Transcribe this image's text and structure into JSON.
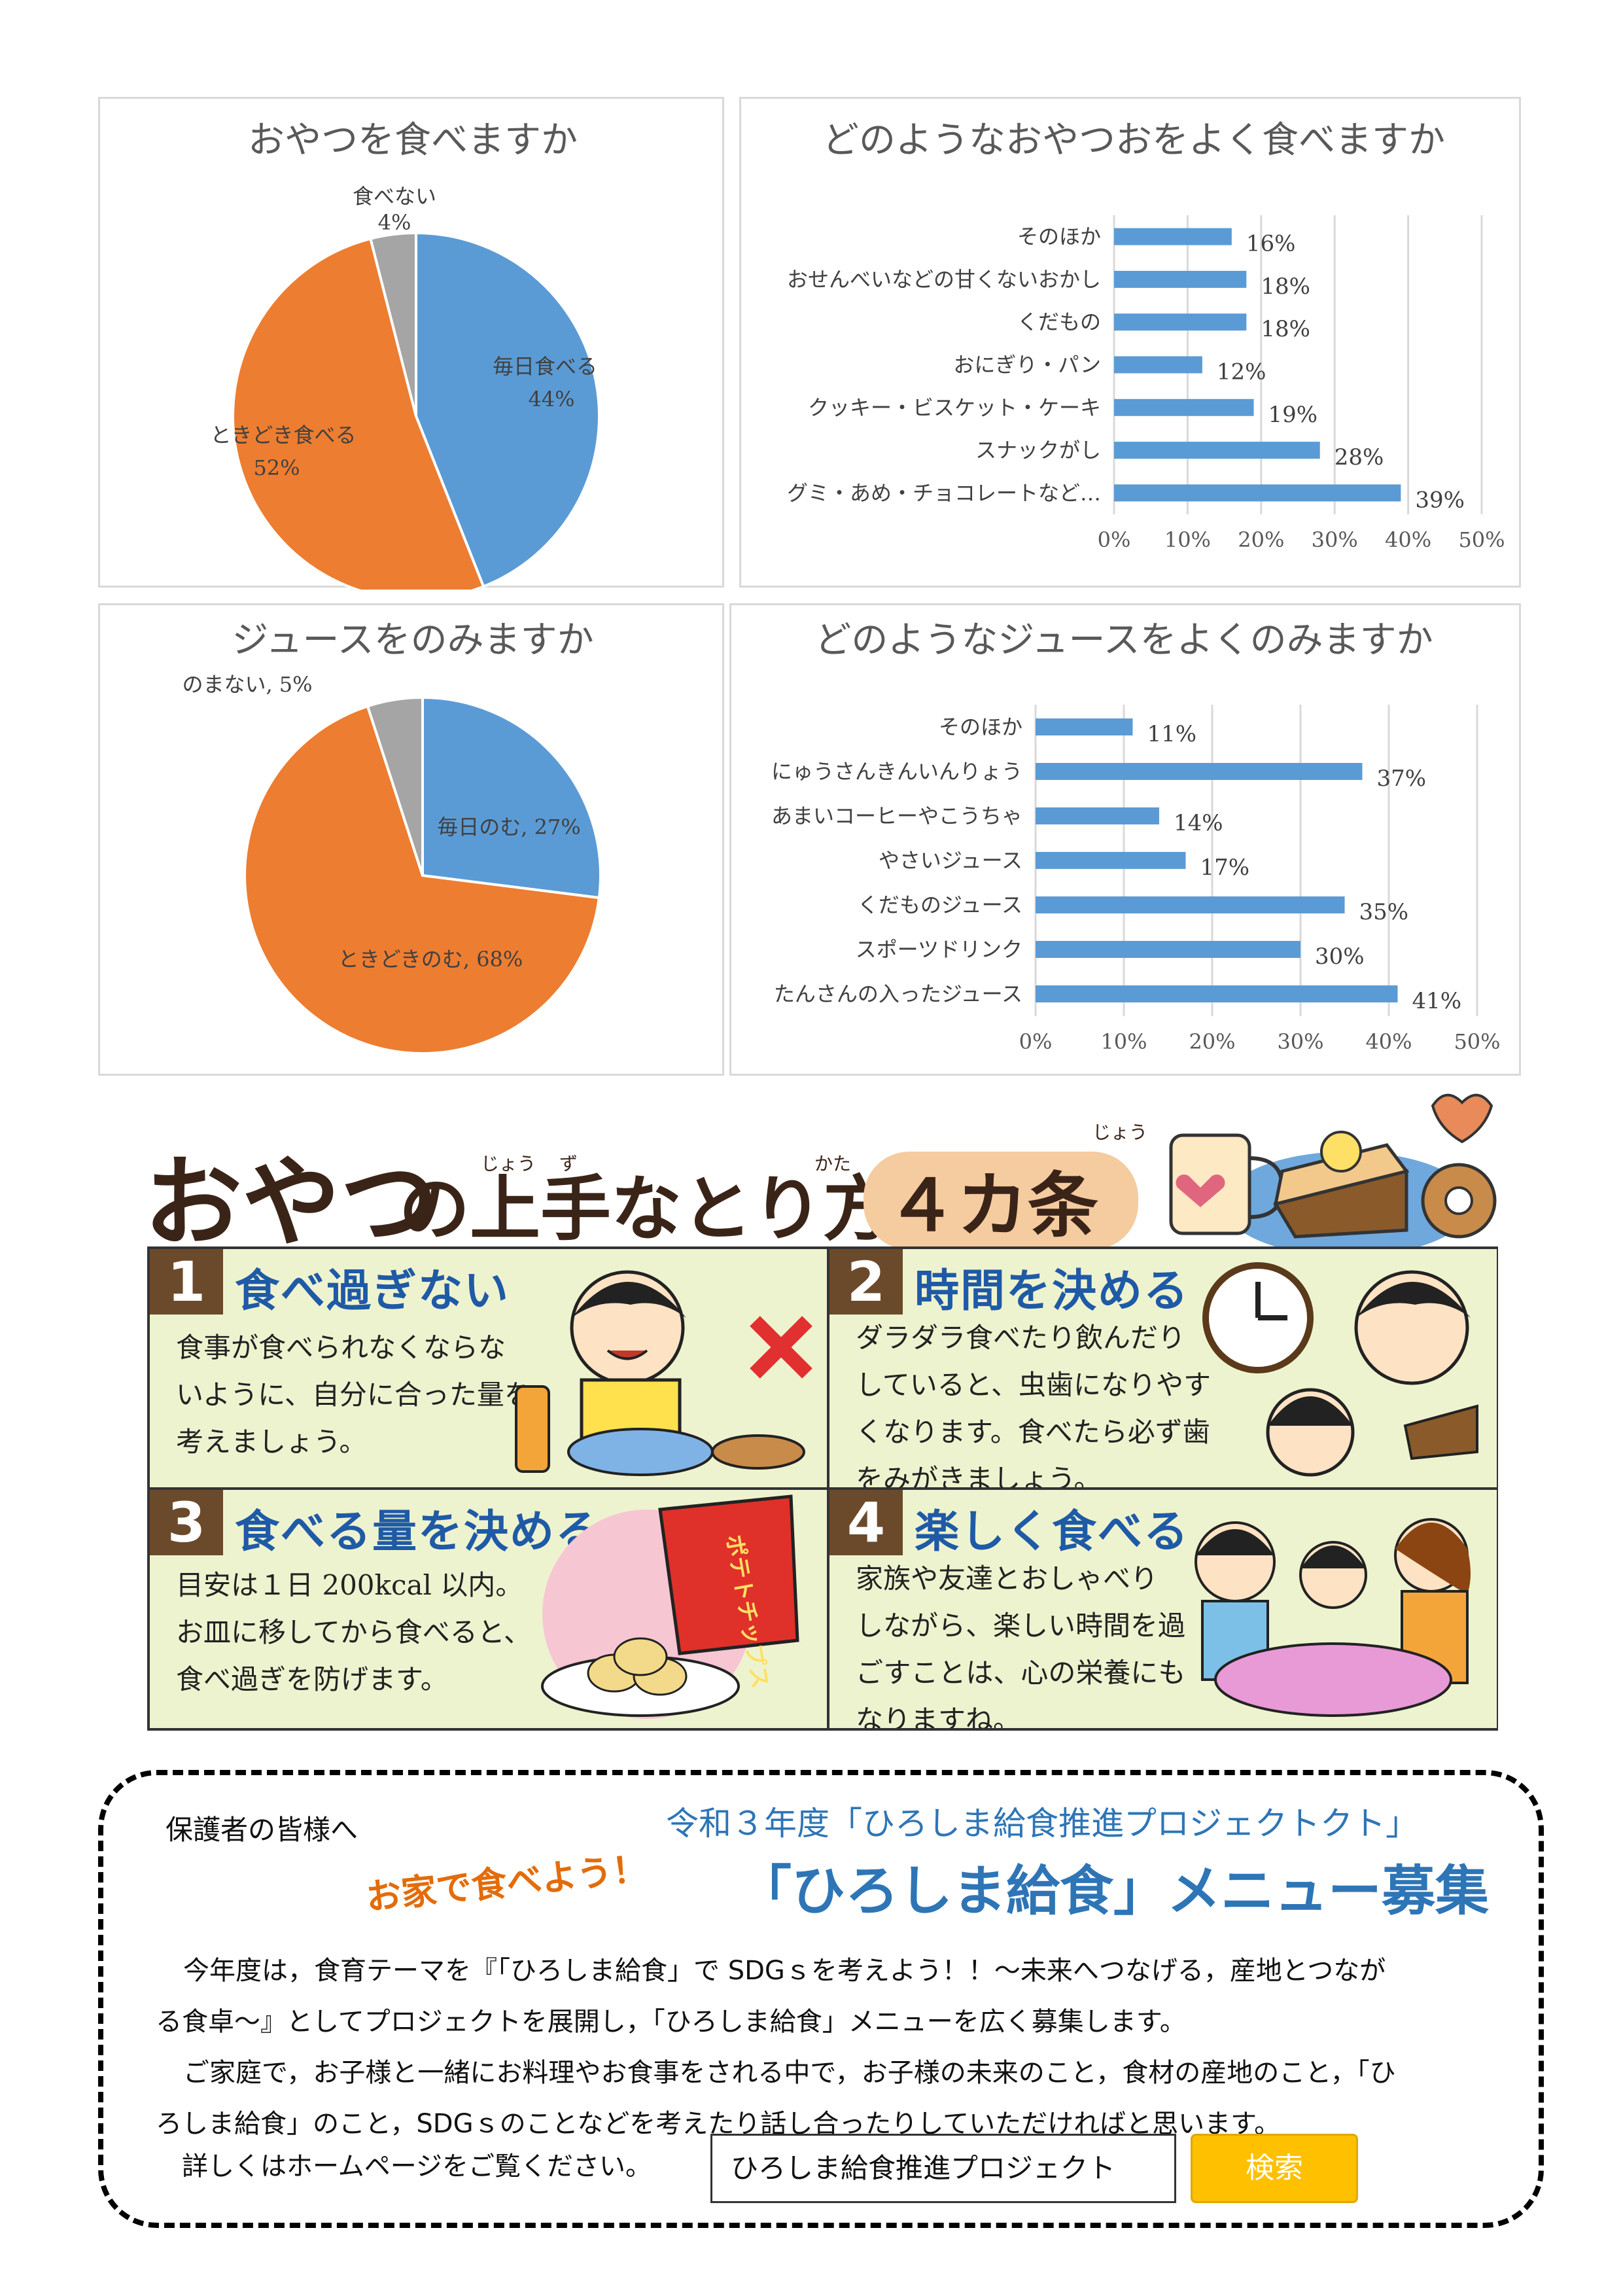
{
  "colors": {
    "blue": "#5b9bd5",
    "orange": "#ed7d31",
    "gray": "#a5a5a5"
  },
  "chart_data": [
    {
      "type": "pie",
      "title": "おやつを食べますか",
      "slices": [
        {
          "label": "毎日食べる",
          "value": 44,
          "value_text": "44%",
          "color": "#5b9bd5"
        },
        {
          "label": "ときどき食べる",
          "value": 52,
          "value_text": "52%",
          "color": "#ed7d31"
        },
        {
          "label": "食べない",
          "value": 4,
          "value_text": "4%",
          "color": "#a5a5a5"
        }
      ]
    },
    {
      "type": "bar",
      "orientation": "horizontal",
      "title": "どのようなおやつおをよく食べますか",
      "categories": [
        "そのほか",
        "おせんべいなどの甘くないおかし",
        "くだもの",
        "おにぎり・パン",
        "クッキー・ビスケット・ケーキ",
        "スナックがし",
        "グミ・あめ・チョコレートなど…"
      ],
      "values": [
        16,
        18,
        18,
        12,
        19,
        28,
        39
      ],
      "value_labels": [
        "16%",
        "18%",
        "18%",
        "12%",
        "19%",
        "28%",
        "39%"
      ],
      "xlim": [
        0,
        50
      ],
      "ticks": [
        "0%",
        "10%",
        "20%",
        "30%",
        "40%",
        "50%"
      ],
      "grid": true
    },
    {
      "type": "pie",
      "title": "ジュースをのみますか",
      "slices": [
        {
          "label": "毎日のむ, 27%",
          "value": 27,
          "color": "#5b9bd5"
        },
        {
          "label": "ときどきのむ, 68%",
          "value": 68,
          "color": "#ed7d31"
        },
        {
          "label": "のまない, 5%",
          "value": 5,
          "color": "#a5a5a5"
        }
      ]
    },
    {
      "type": "bar",
      "orientation": "horizontal",
      "title": "どのようなジュースをよくのみますか",
      "categories": [
        "そのほか",
        "にゅうさんきんいんりょう",
        "あまいコーヒーやこうちゃ",
        "やさいジュース",
        "くだものジュース",
        "スポーツドリンク",
        "たんさんの入ったジュース"
      ],
      "values": [
        11,
        37,
        14,
        17,
        35,
        30,
        41
      ],
      "value_labels": [
        "11%",
        "37%",
        "14%",
        "17%",
        "35%",
        "30%",
        "41%"
      ],
      "xlim": [
        0,
        50
      ],
      "ticks": [
        "0%",
        "10%",
        "20%",
        "30%",
        "40%",
        "50%"
      ],
      "grid": true
    }
  ],
  "banner": {
    "part1": "おやつ",
    "part2": "の上手なとり方",
    "part3": "４カ条",
    "ruby_jou": "じょう",
    "ruby_zu": "ず",
    "ruby_kata": "かた",
    "ruby_jou2": "じょう"
  },
  "tips": [
    {
      "num": "1",
      "title": "食べ過ぎない",
      "lines": [
        "食事が食べられなくならな",
        "いように、自分に合った量を",
        "考えましょう。"
      ]
    },
    {
      "num": "2",
      "title": "時間を決める",
      "lines": [
        "ダラダラ食べたり飲んだり",
        "していると、虫歯になりやす",
        "くなります。食べたら必ず歯",
        "をみがきましょう。"
      ]
    },
    {
      "num": "3",
      "title": "食べる量を決める",
      "lines": [
        "目安は１日 200kcal 以内。",
        "お皿に移してから食べると、",
        "食べ過ぎを防げます。"
      ],
      "bag_text": "ポテトチップス"
    },
    {
      "num": "4",
      "title": "楽しく食べる",
      "lines": [
        "家族や友達とおしゃべり",
        "しながら、楽しい時間を過",
        "ごすことは、心の栄養にも",
        "なりますね。"
      ]
    }
  ],
  "notice": {
    "to": "保護者の皆様へ",
    "project": "令和３年度「ひろしま給食推進プロジェクトクト」",
    "slogan": "お家で食べよう！",
    "heading": "「ひろしま給食」メニュー募集",
    "para1": "今年度は，食育テーマを『「ひろしま給食」で SDGｓを考えよう！！～未来へつなげる，産地とつなが",
    "para2": "る食卓～』としてプロジェクトを展開し，「ひろしま給食」メニューを広く募集します。",
    "para3": "ご家庭で，お子様と一緒にお料理やお食事をされる中で，お子様の未来のこと，食材の産地のこと，「ひ",
    "para4": "ろしま給食」のこと，SDGｓのことなどを考えたり話し合ったりしていただければと思います。",
    "more": "詳しくはホームページをご覧ください。",
    "search_value": "ひろしま給食推進プロジェクト",
    "search_button": "検索"
  }
}
